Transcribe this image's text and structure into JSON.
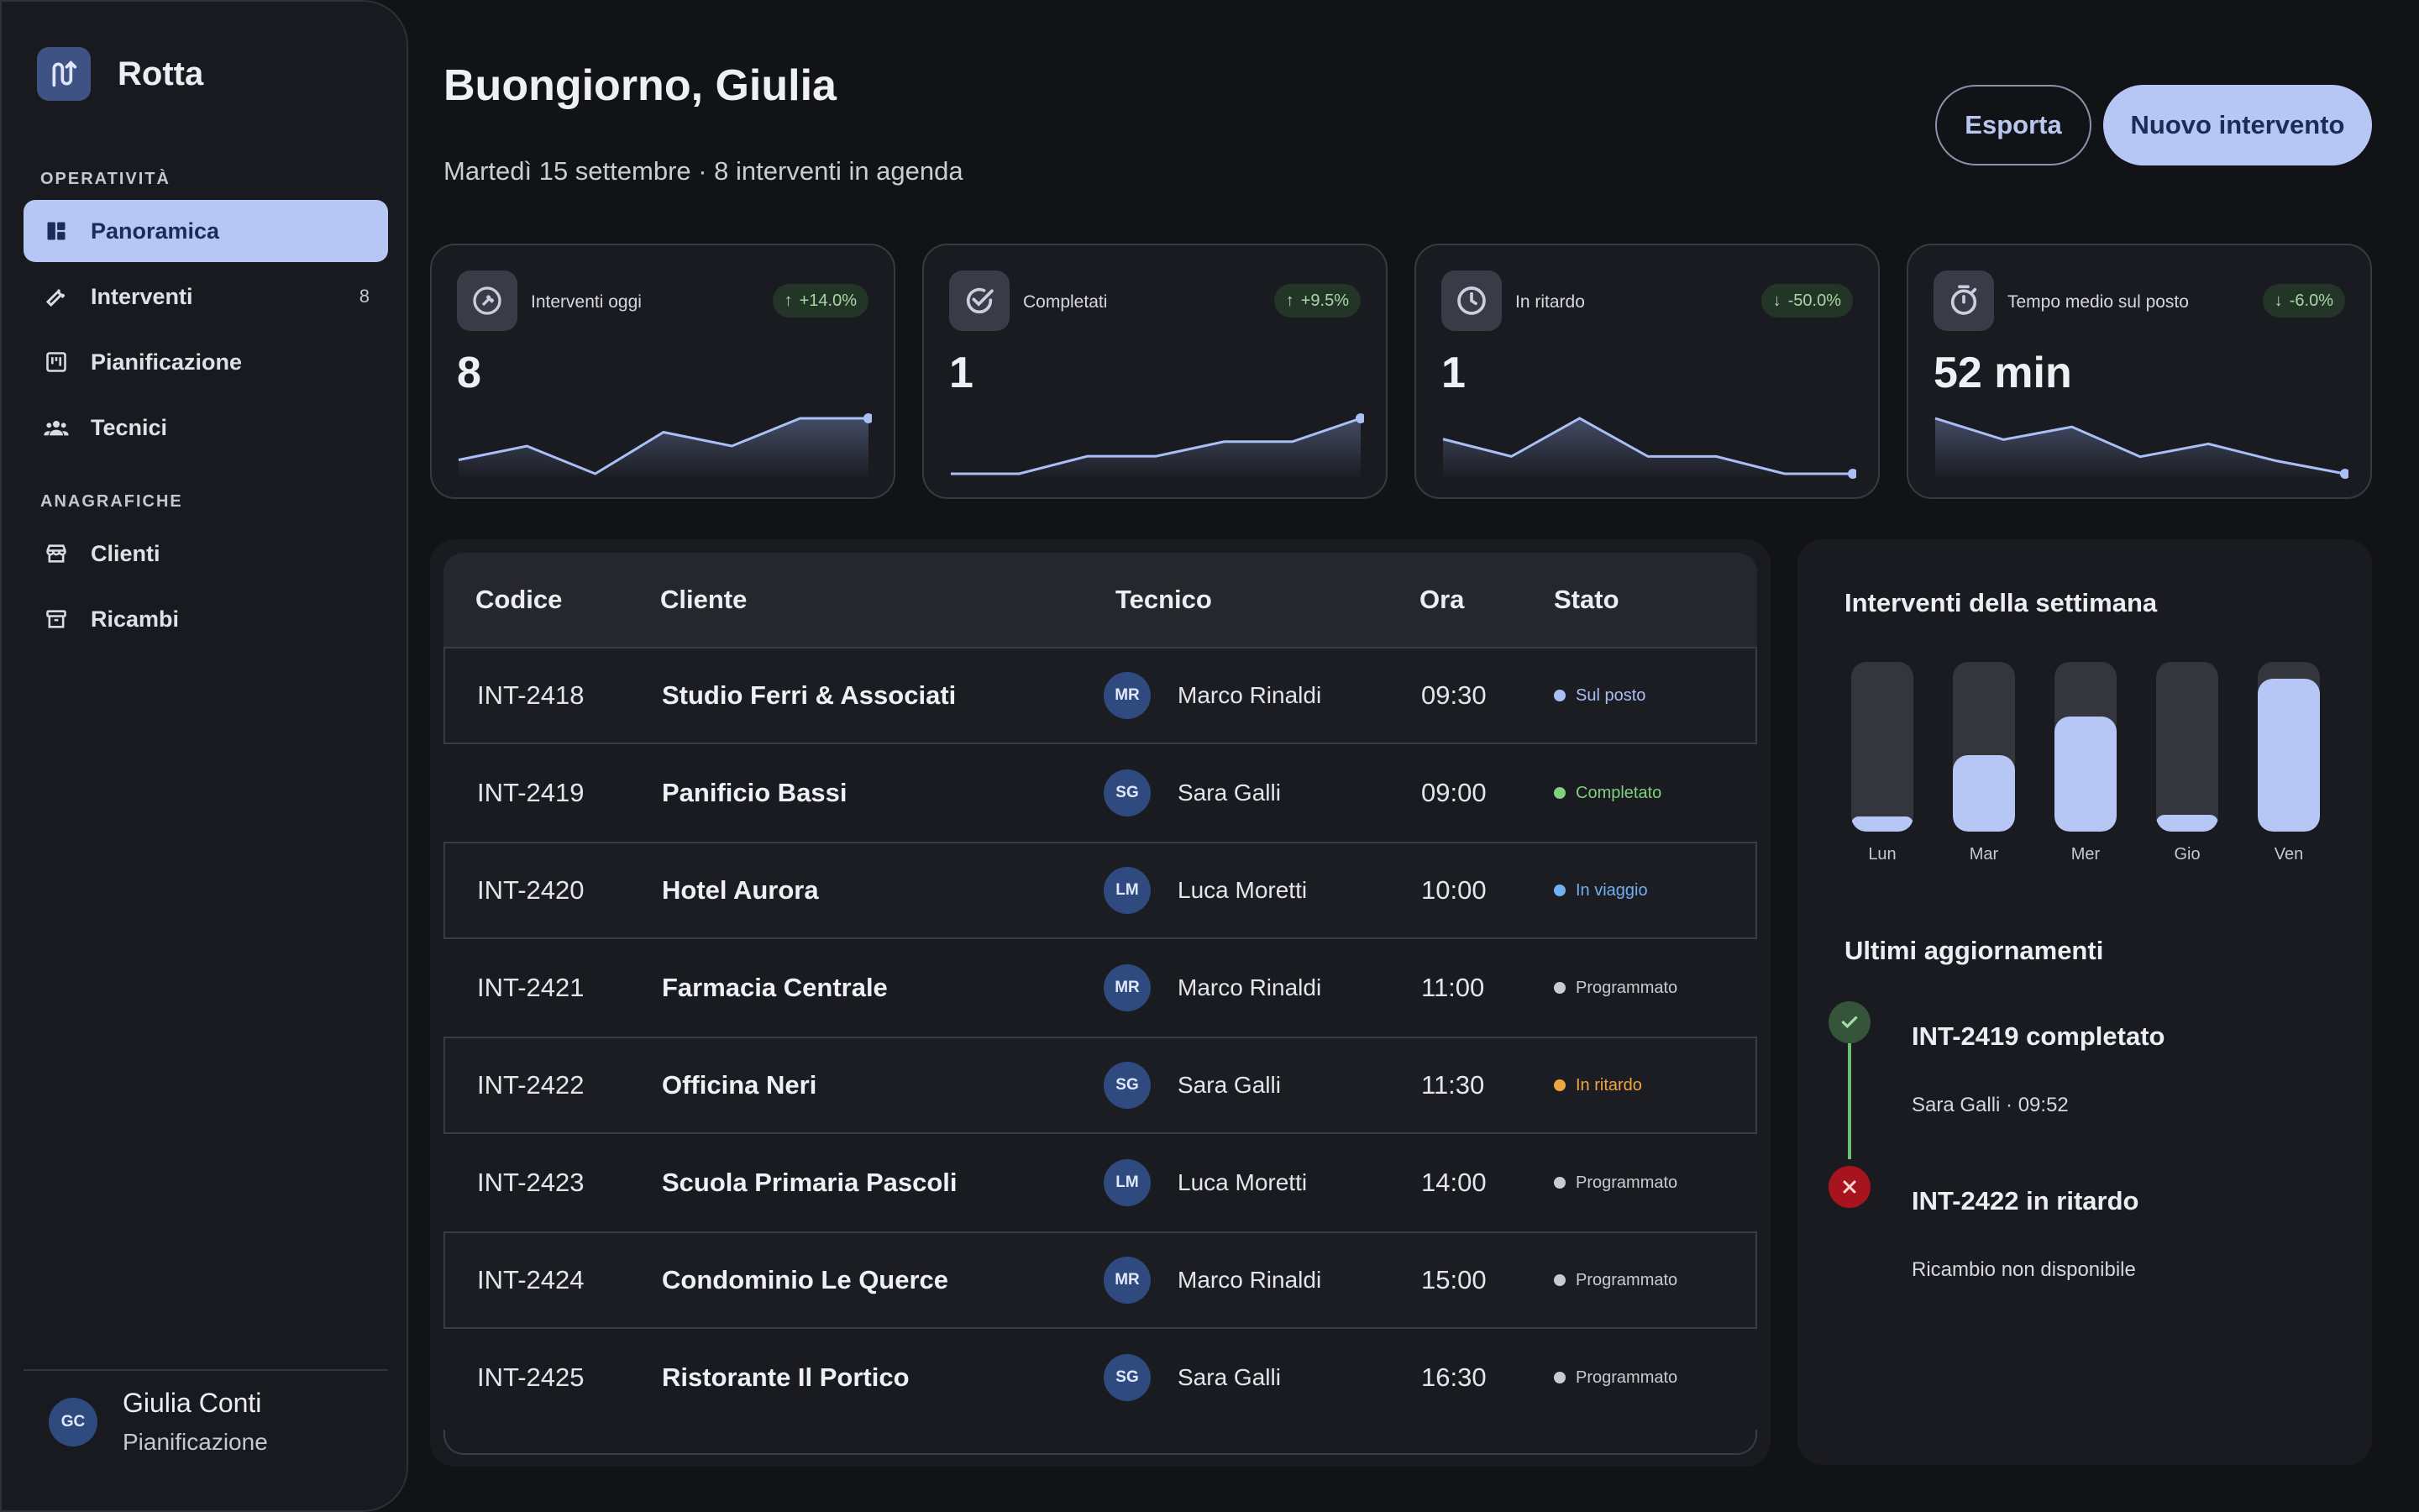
{
  "app": {
    "name": "Rotta"
  },
  "sidebar": {
    "sections": [
      {
        "label": "OPERATIVITÀ"
      },
      {
        "label": "ANAGRAFICHE"
      }
    ],
    "items": [
      {
        "label": "Panoramica",
        "icon": "dashboard-icon",
        "active": true
      },
      {
        "label": "Interventi",
        "icon": "wrench-icon",
        "count": "8"
      },
      {
        "label": "Pianificazione",
        "icon": "calendar-board-icon"
      },
      {
        "label": "Tecnici",
        "icon": "people-icon"
      },
      {
        "label": "Clienti",
        "icon": "store-icon"
      },
      {
        "label": "Ricambi",
        "icon": "archive-icon"
      }
    ],
    "user": {
      "initials": "GC",
      "name": "Giulia Conti",
      "role": "Pianificazione"
    }
  },
  "header": {
    "title": "Buongiorno, Giulia",
    "subtitle": "Martedì 15 settembre · 8 interventi in agenda",
    "export_label": "Esporta",
    "new_label": "Nuovo intervento"
  },
  "kpis": [
    {
      "label": "Interventi oggi",
      "value": "8",
      "delta": "+14.0%",
      "trend": "up",
      "icon": "wrench-circle-icon",
      "spark": [
        4,
        5,
        3,
        6,
        5,
        7,
        7
      ]
    },
    {
      "label": "Completati",
      "value": "1",
      "delta": "+9.5%",
      "trend": "up",
      "icon": "check-circle-icon",
      "spark": [
        0,
        0,
        0.3,
        0.3,
        0.55,
        0.55,
        0.95
      ]
    },
    {
      "label": "In ritardo",
      "value": "1",
      "delta": "-50.0%",
      "trend": "down",
      "icon": "clock-icon",
      "spark": [
        2,
        1.5,
        2.6,
        1.5,
        1.5,
        1,
        1
      ]
    },
    {
      "label": "Tempo medio sul posto",
      "value": "52 min",
      "delta": "-6.0%",
      "trend": "down",
      "icon": "stopwatch-icon",
      "spark": [
        70,
        65,
        68,
        61,
        64,
        60,
        57
      ]
    }
  ],
  "table": {
    "headers": {
      "code": "Codice",
      "client": "Cliente",
      "tech": "Tecnico",
      "time": "Ora",
      "state": "Stato"
    },
    "rows": [
      {
        "code": "INT-2418",
        "client": "Studio Ferri & Associati",
        "initials": "MR",
        "tech": "Marco Rinaldi",
        "time": "09:30",
        "state": "Sul posto",
        "state_color": "#a9bff5"
      },
      {
        "code": "INT-2419",
        "client": "Panificio Bassi",
        "initials": "SG",
        "tech": "Sara Galli",
        "time": "09:00",
        "state": "Completato",
        "state_color": "#7fd17f"
      },
      {
        "code": "INT-2420",
        "client": "Hotel Aurora",
        "initials": "LM",
        "tech": "Luca Moretti",
        "time": "10:00",
        "state": "In viaggio",
        "state_color": "#6fb1f0"
      },
      {
        "code": "INT-2421",
        "client": "Farmacia Centrale",
        "initials": "MR",
        "tech": "Marco Rinaldi",
        "time": "11:00",
        "state": "Programmato",
        "state_color": "#c9cbd1"
      },
      {
        "code": "INT-2422",
        "client": "Officina Neri",
        "initials": "SG",
        "tech": "Sara Galli",
        "time": "11:30",
        "state": "In ritardo",
        "state_color": "#f0a640"
      },
      {
        "code": "INT-2423",
        "client": "Scuola Primaria Pascoli",
        "initials": "LM",
        "tech": "Luca Moretti",
        "time": "14:00",
        "state": "Programmato",
        "state_color": "#c9cbd1"
      },
      {
        "code": "INT-2424",
        "client": "Condominio Le Querce",
        "initials": "MR",
        "tech": "Marco Rinaldi",
        "time": "15:00",
        "state": "Programmato",
        "state_color": "#c9cbd1"
      },
      {
        "code": "INT-2425",
        "client": "Ristorante Il Portico",
        "initials": "SG",
        "tech": "Sara Galli",
        "time": "16:30",
        "state": "Programmato",
        "state_color": "#c9cbd1"
      }
    ]
  },
  "week": {
    "title": "Interventi della settimana",
    "days": [
      {
        "label": "Lun",
        "level": 0.09
      },
      {
        "label": "Mar",
        "level": 0.45
      },
      {
        "label": "Mer",
        "level": 0.68
      },
      {
        "label": "Gio",
        "level": 0.1
      },
      {
        "label": "Ven",
        "level": 0.9
      }
    ]
  },
  "updates": {
    "title": "Ultimi aggiornamenti",
    "items": [
      {
        "title": "INT-2419 completato",
        "sub": "Sara Galli · 09:52",
        "kind": "success"
      },
      {
        "title": "INT-2422 in ritardo",
        "sub": "Ricambio non disponibile",
        "kind": "error"
      }
    ]
  },
  "colors": {
    "accent": "#b7c7f5",
    "success": "#6fbf73",
    "error": "#c6202a",
    "background": "#121317"
  }
}
